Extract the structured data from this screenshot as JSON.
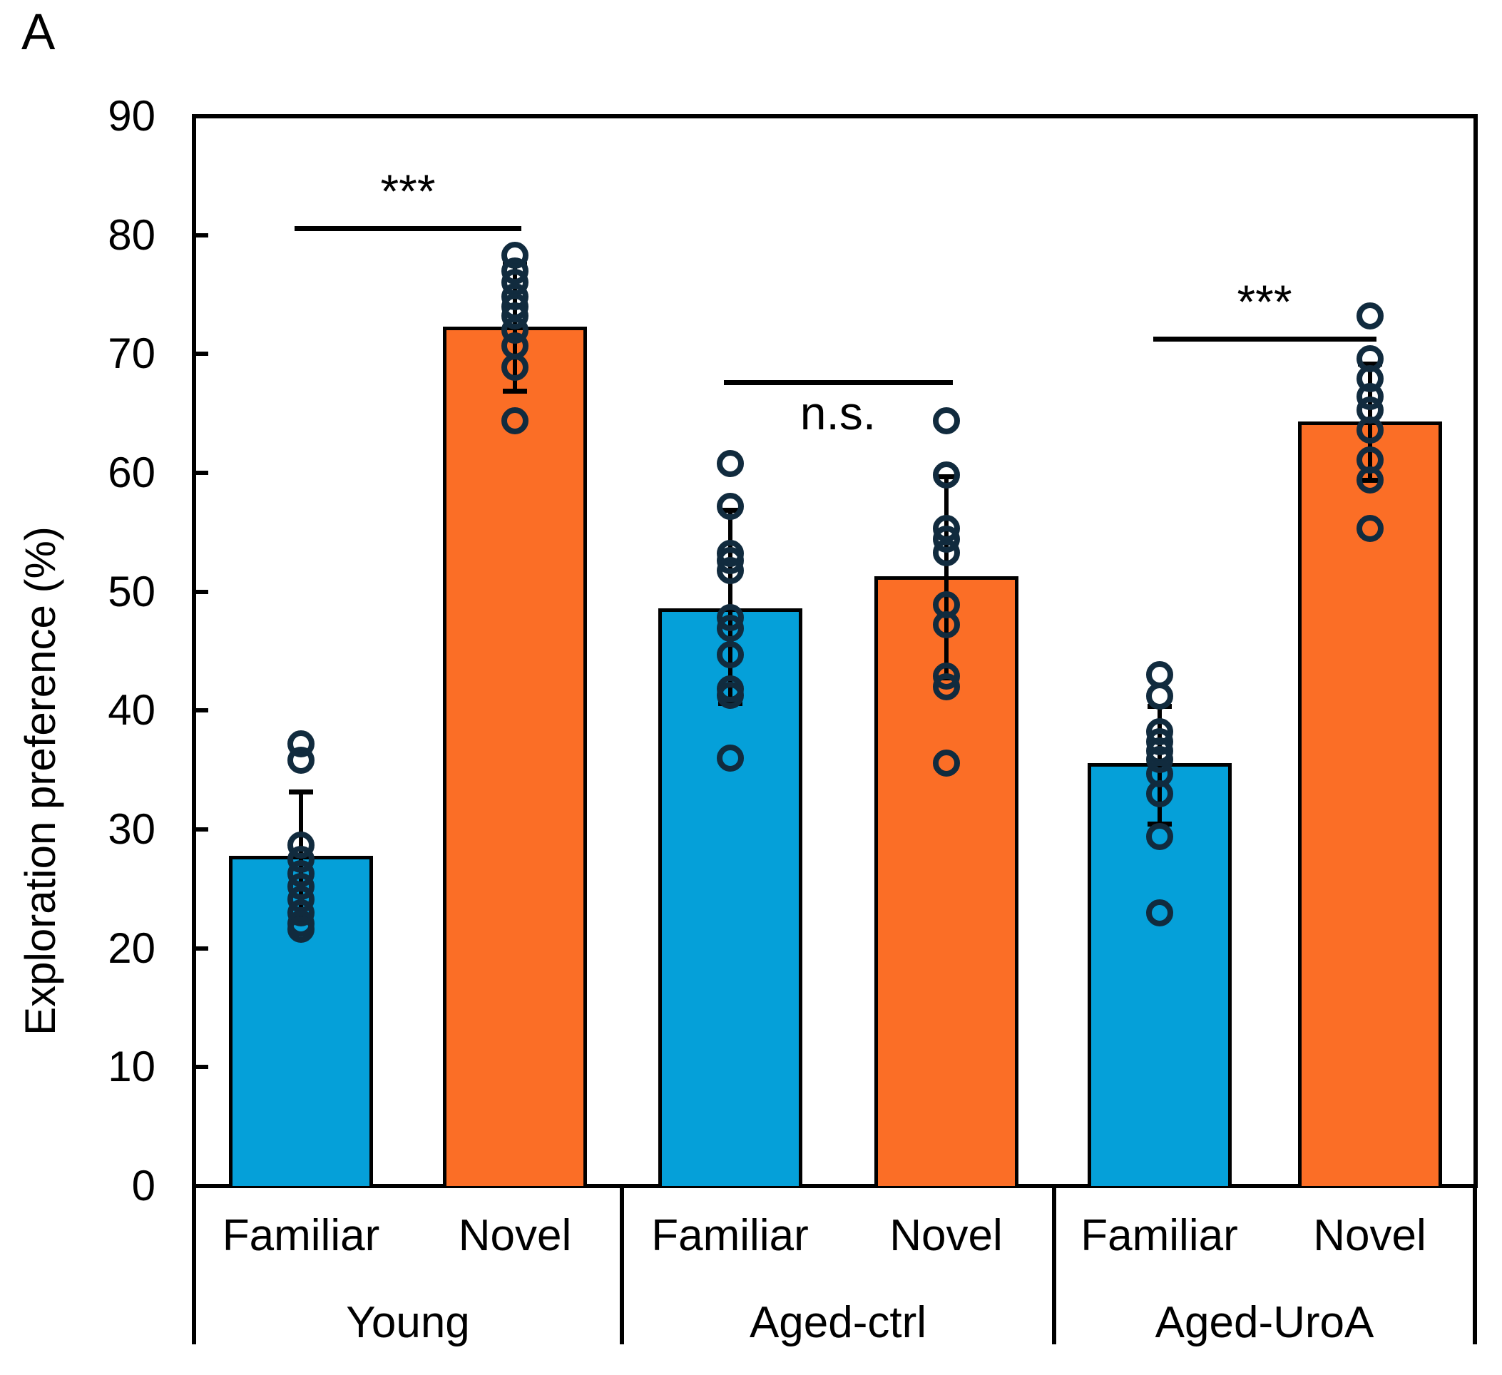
{
  "panel_label": "A",
  "colors": {
    "familiar_bar": "#05A0D9",
    "novel_bar": "#FB6E26",
    "point_stroke": "#112B3E",
    "axis": "#000000"
  },
  "chart_data": {
    "type": "bar",
    "title": "",
    "xlabel": "",
    "ylabel": "Exploration preference (%)",
    "ylim": [
      0,
      90
    ],
    "yticks": [
      0,
      10,
      20,
      30,
      40,
      50,
      60,
      70,
      80,
      90
    ],
    "grid": false,
    "legend": false,
    "point_style": {
      "shape": "open-circle",
      "stroke": "#112B3E"
    },
    "categories": [
      "Young",
      "Aged-ctrl",
      "Aged-UroA"
    ],
    "conditions": [
      "Familiar",
      "Novel"
    ],
    "series": [
      {
        "name": "Familiar",
        "color": "#05A0D9",
        "values": [
          27.8,
          48.6,
          35.6
        ],
        "error_low": [
          22.4,
          40.6,
          30.5
        ],
        "error_high": [
          33.2,
          56.9,
          40.4
        ],
        "points": [
          [
            37.2,
            35.8,
            28.7,
            27.5,
            26.3,
            25.2,
            24.1,
            23.0,
            22.1,
            21.6
          ],
          [
            60.8,
            57.2,
            53.2,
            52.6,
            51.8,
            47.8,
            46.9,
            44.7,
            41.8,
            41.3,
            36.0
          ],
          [
            43.0,
            41.2,
            38.2,
            37.4,
            36.6,
            35.9,
            34.7,
            33.0,
            29.4,
            23.0
          ]
        ]
      },
      {
        "name": "Novel",
        "color": "#FB6E26",
        "values": [
          72.3,
          51.3,
          64.3
        ],
        "error_low": [
          66.9,
          42.8,
          59.4
        ],
        "error_high": [
          77.6,
          59.7,
          69.2
        ],
        "points": [
          [
            78.3,
            77.0,
            76.0,
            74.8,
            74.0,
            73.2,
            72.0,
            70.7,
            68.9,
            64.4
          ],
          [
            64.4,
            59.8,
            55.3,
            54.4,
            53.3,
            48.9,
            47.2,
            42.9,
            42.0,
            35.6
          ],
          [
            73.2,
            69.6,
            67.9,
            66.4,
            65.3,
            63.6,
            61.1,
            59.4,
            55.3
          ]
        ]
      }
    ],
    "significance": [
      {
        "category": "Young",
        "label": "***",
        "label_above": true,
        "line_y_value": 80.6
      },
      {
        "category": "Aged-ctrl",
        "label": "n.s.",
        "label_above": false,
        "line_y_value": 67.6
      },
      {
        "category": "Aged-UroA",
        "label": "***",
        "label_above": true,
        "line_y_value": 71.3
      }
    ]
  }
}
